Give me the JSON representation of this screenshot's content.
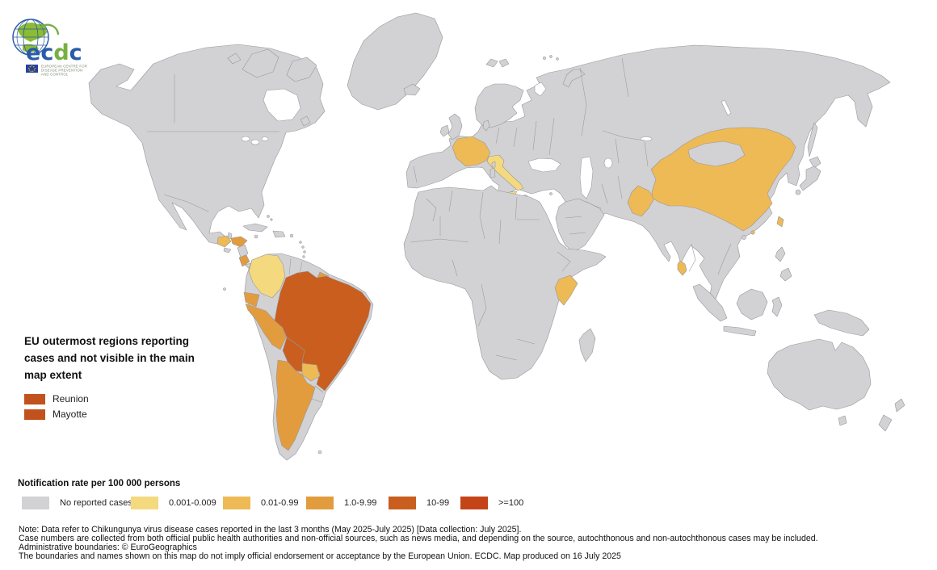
{
  "logo": {
    "brand_letters": [
      "e",
      "c",
      "d",
      "c"
    ],
    "tagline_lines": [
      "EUROPEAN CENTRE FOR",
      "DISEASE PREVENTION",
      "AND CONTROL"
    ],
    "brand_blue": "#2a5ba8",
    "brand_green": "#76b043"
  },
  "outermost_legend": {
    "title_lines": [
      "EU outermost regions reporting",
      "cases and not visible in the main",
      "map extent"
    ],
    "swatch_color": "#c2521d",
    "items": [
      {
        "label": "Reunion"
      },
      {
        "label": "Mayotte"
      }
    ]
  },
  "rate_legend": {
    "title": "Notification rate per 100 000 persons",
    "items": [
      {
        "label": "No reported cases",
        "color": "#d2d2d5"
      },
      {
        "label": "0.001-0.009",
        "color": "#f4d97e"
      },
      {
        "label": "0.01-0.99",
        "color": "#eeba55"
      },
      {
        "label": "1.0-9.99",
        "color": "#e29c3e"
      },
      {
        "label": "10-99",
        "color": "#c95e1f"
      },
      {
        "label": ">=100",
        "color": "#c44418"
      }
    ]
  },
  "footer": {
    "lines": [
      "Note: Data refer to Chikungunya virus disease cases reported in the last 3 months (May 2025-July 2025) [Data collection: July 2025].",
      "Case numbers are collected from both official public health authorities and non-official sources, such as news media, and depending on the source, autochthonous and non-autochthonous cases may be included.",
      "Administrative boundaries: © EuroGeographics",
      "The boundaries and names shown on this map do not imply official endorsement or acceptance by the European Union. ECDC. Map produced on 16 July 2025"
    ]
  },
  "map": {
    "ocean_color": "#ffffff",
    "land_color": "#d2d2d5",
    "border_color": "#97979b",
    "category_colors": {
      "no_cases": "#d2d2d5",
      "0.001-0.009": "#f4d97e",
      "0.01-0.99": "#eeba55",
      "1.0-9.99": "#e29c3e",
      "10-99": "#c95e1f",
      ">=100": "#c44418"
    },
    "countries": {
      "france": "0.01-0.99",
      "italy": "0.001-0.009",
      "china": "0.01-0.99",
      "pakistan": "0.01-0.99",
      "taiwan": "0.01-0.99",
      "hong_kong": "0.01-0.99",
      "sri_lanka": "0.01-0.99",
      "kenya": "0.01-0.99",
      "guatemala": "0.01-0.99",
      "honduras": "1.0-9.99",
      "costa_rica": "1.0-9.99",
      "colombia": "0.001-0.009",
      "ecuador": "1.0-9.99",
      "peru": "1.0-9.99",
      "french_guiana": "1.0-9.99",
      "brazil": "10-99",
      "bolivia": "10-99",
      "paraguay": "0.01-0.99",
      "argentina": "1.0-9.99"
    }
  }
}
